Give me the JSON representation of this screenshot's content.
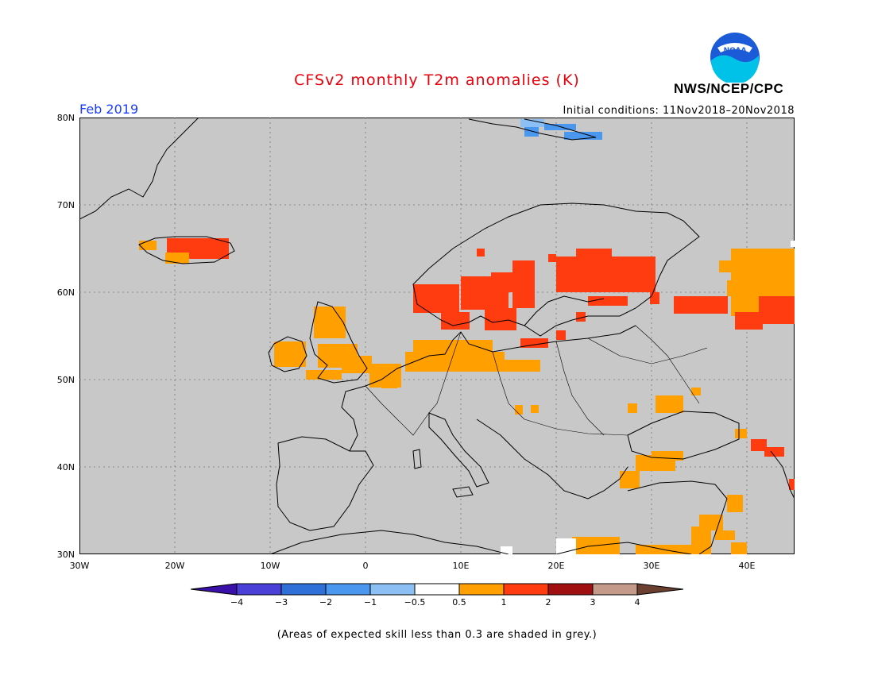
{
  "header": {
    "title": "CFSv2 monthly T2m anomalies (K)",
    "agency": "NWS/NCEP/CPC",
    "month": "Feb 2019",
    "initial_conditions": "Initial conditions: 11Nov2018–20Nov2018",
    "logo_text": "NOAA"
  },
  "map": {
    "lon_labels": [
      "30W",
      "20W",
      "10W",
      "0",
      "10E",
      "20E",
      "30E",
      "40E"
    ],
    "lat_labels": [
      "80N",
      "70N",
      "60N",
      "50N",
      "40N",
      "30N"
    ],
    "region": "Europe",
    "background_color": "#c8c8c8"
  },
  "legend": {
    "labels": [
      "−4",
      "−3",
      "−2",
      "−1",
      "−0.5",
      "0.5",
      "1",
      "2",
      "3",
      "4"
    ],
    "colors": [
      "#3a10a8",
      "#4a3fd6",
      "#2e6fd8",
      "#4a97ef",
      "#8cc0f5",
      "#ffffff",
      "#ff9f00",
      "#ff3b10",
      "#a01010",
      "#c49a8a",
      "#6b4030"
    ]
  },
  "footnote": "(Areas of expected skill less than 0.3 are shaded in grey.)"
}
